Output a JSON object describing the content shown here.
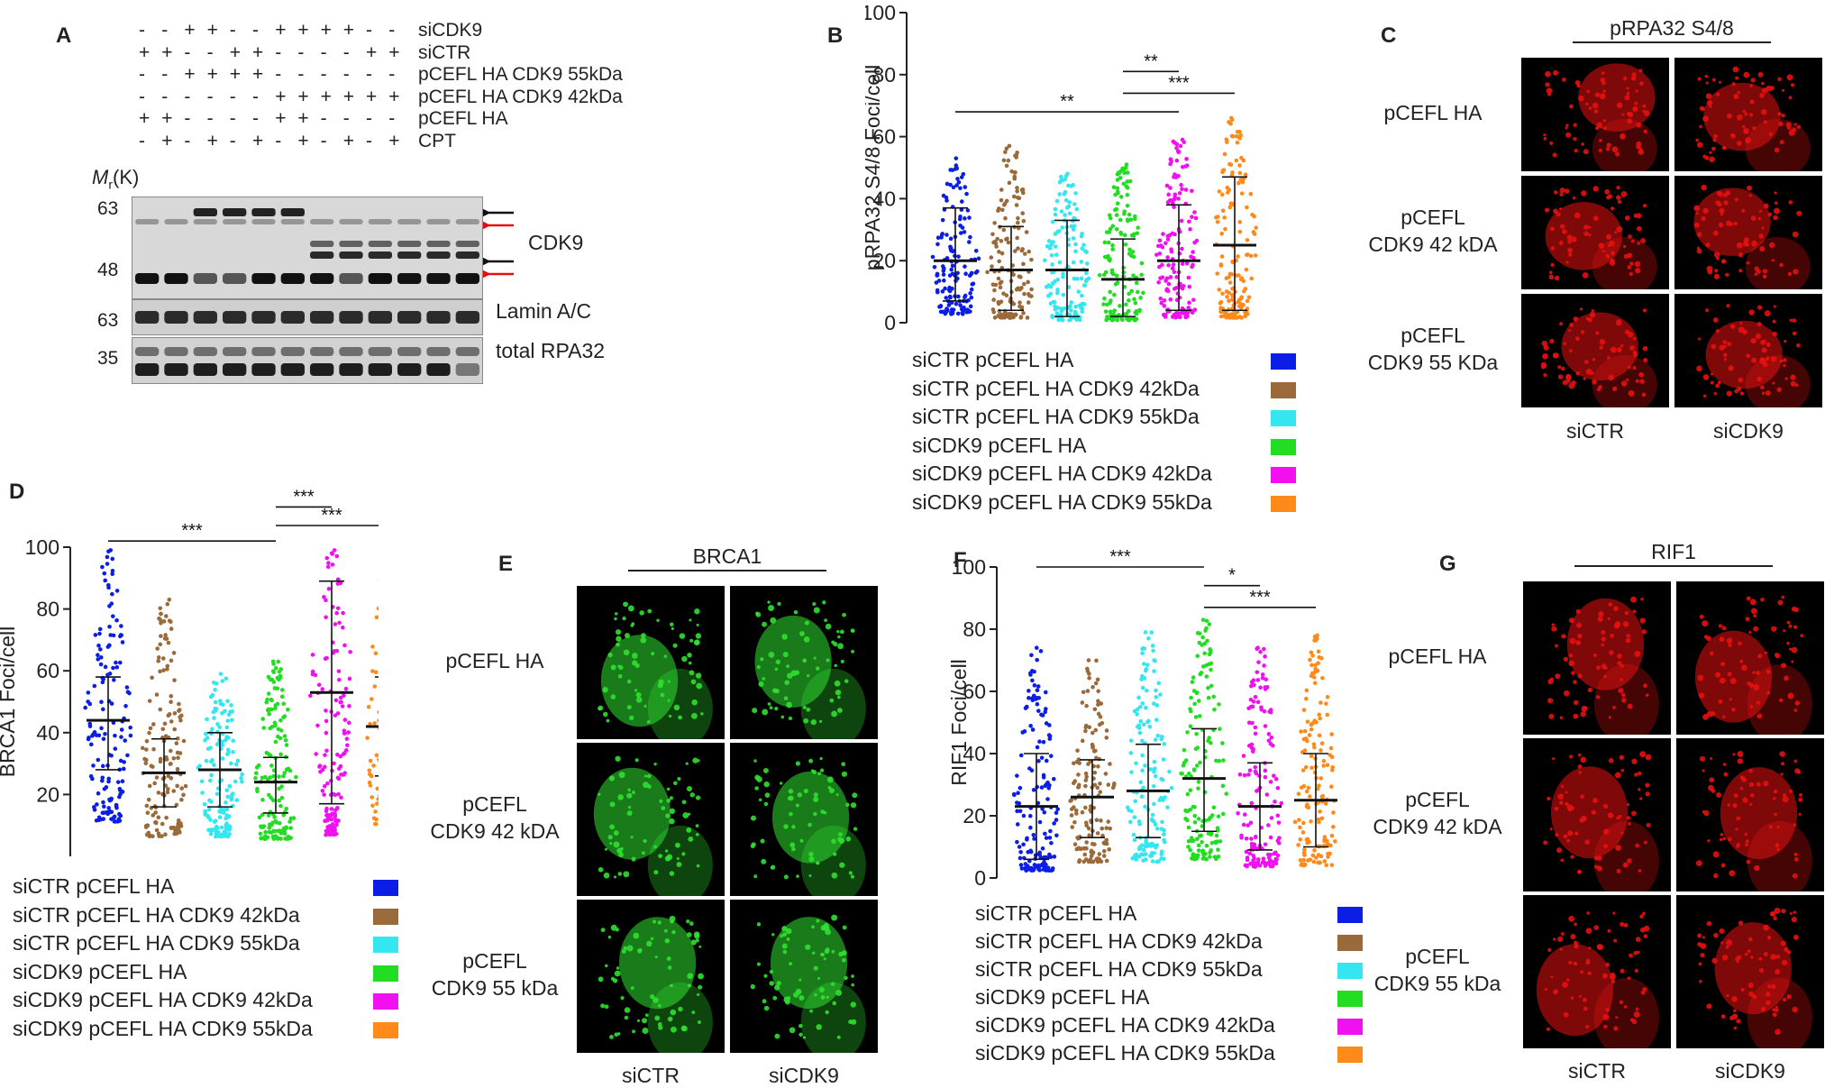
{
  "panels": {
    "A": "A",
    "B": "B",
    "C": "C",
    "D": "D",
    "E": "E",
    "F": "F",
    "G": "G"
  },
  "blot": {
    "rows": [
      {
        "label": "siCDK9",
        "signs": [
          "-",
          "-",
          "+",
          "+",
          "-",
          "-",
          "+",
          "+",
          "+",
          "+",
          "-",
          "-"
        ]
      },
      {
        "label": "siCTR",
        "signs": [
          "+",
          "+",
          "-",
          "-",
          "+",
          "+",
          "-",
          "-",
          "-",
          "-",
          "+",
          "+"
        ]
      },
      {
        "label": "pCEFL HA CDK9 55kDa",
        "signs": [
          "-",
          "-",
          "+",
          "+",
          "+",
          "+",
          "-",
          "-",
          "-",
          "-",
          "-",
          "-"
        ]
      },
      {
        "label": "pCEFL HA CDK9 42kDa",
        "signs": [
          "-",
          "-",
          "-",
          "-",
          "-",
          "-",
          "+",
          "+",
          "+",
          "+",
          "+",
          "+"
        ]
      },
      {
        "label": "pCEFL HA",
        "signs": [
          "+",
          "+",
          "-",
          "-",
          "-",
          "-",
          "+",
          "+",
          "-",
          "-",
          "-",
          "-"
        ]
      },
      {
        "label": "CPT",
        "signs": [
          "-",
          "+",
          "-",
          "+",
          "-",
          "+",
          "-",
          "+",
          "-",
          "+",
          "-",
          "+"
        ]
      }
    ],
    "mr_label_main": "M",
    "mr_label_sub": "r",
    "mr_label_tail": "(K)",
    "markers": [
      "63",
      "48",
      "63",
      "35"
    ],
    "band_labels": [
      "CDK9",
      "Lamin A/C",
      "total RPA32"
    ]
  },
  "legend_items": [
    {
      "label": "siCTR pCEFL HA",
      "color": "#0a1ee6"
    },
    {
      "label": "siCTR pCEFL HA CDK9 42kDa",
      "color": "#9a6a3a"
    },
    {
      "label": "siCTR pCEFL HA CDK9 55kDa",
      "color": "#33e6f0"
    },
    {
      "label": "siCDK9 pCEFL HA",
      "color": "#22dd22"
    },
    {
      "label": "siCDK9 pCEFL HA CDK9 42kDa",
      "color": "#f010f0"
    },
    {
      "label": "siCDK9 pCEFL HA CDK9 55kDa",
      "color": "#ff8a1a"
    }
  ],
  "chart_data": [
    {
      "panel": "B",
      "type": "scatter",
      "ylabel": "pRPA32 S4/8 Foci/cell",
      "ylim": [
        0,
        100
      ],
      "yticks": [
        "0",
        "20",
        "40",
        "60",
        "80",
        "100"
      ],
      "series": [
        {
          "name": "siCTR pCEFL HA",
          "mean": 20,
          "sd_low": 7,
          "sd_high": 37,
          "max": 53
        },
        {
          "name": "siCTR pCEFL HA CDK9 42kDa",
          "mean": 17,
          "sd_low": 4,
          "sd_high": 31,
          "max": 57
        },
        {
          "name": "siCTR pCEFL HA CDK9 55kDa",
          "mean": 17,
          "sd_low": 2,
          "sd_high": 33,
          "max": 48
        },
        {
          "name": "siCDK9 pCEFL HA",
          "mean": 14,
          "sd_low": 2,
          "sd_high": 27,
          "max": 51
        },
        {
          "name": "siCDK9 pCEFL HA CDK9 42kDa",
          "mean": 20,
          "sd_low": 4,
          "sd_high": 38,
          "max": 59
        },
        {
          "name": "siCDK9 pCEFL HA CDK9 55kDa",
          "mean": 25,
          "sd_low": 4,
          "sd_high": 47,
          "max": 66
        }
      ],
      "significance": [
        {
          "from": 0,
          "to": 4,
          "label": "**",
          "y": 68
        },
        {
          "from": 3,
          "to": 4,
          "label": "**",
          "y": 81
        },
        {
          "from": 3,
          "to": 5,
          "label": "***",
          "y": 74
        }
      ]
    },
    {
      "panel": "D",
      "type": "scatter",
      "ylabel": "BRCA1 Foci/cell",
      "ylim": [
        0,
        100
      ],
      "yticks": [
        "20",
        "40",
        "60",
        "80",
        "100"
      ],
      "series": [
        {
          "name": "siCTR pCEFL HA",
          "mean": 44,
          "sd_low": 28,
          "sd_high": 58,
          "max": 99
        },
        {
          "name": "siCTR pCEFL HA CDK9 42kDa",
          "mean": 27,
          "sd_low": 16,
          "sd_high": 38,
          "max": 83
        },
        {
          "name": "siCTR pCEFL HA CDK9 55kDa",
          "mean": 28,
          "sd_low": 16,
          "sd_high": 40,
          "max": 59
        },
        {
          "name": "siCDK9 pCEFL HA",
          "mean": 24,
          "sd_low": 14,
          "sd_high": 32,
          "max": 63
        },
        {
          "name": "siCDK9 pCEFL HA CDK9 42kDa",
          "mean": 53,
          "sd_low": 17,
          "sd_high": 89,
          "max": 99
        },
        {
          "name": "siCDK9 pCEFL HA CDK9 55kDa",
          "mean": 42,
          "sd_low": 26,
          "sd_high": 58,
          "max": 99
        }
      ],
      "significance": [
        {
          "from": 0,
          "to": 3,
          "label": "***",
          "y": 102
        },
        {
          "from": 3,
          "to": 4,
          "label": "***",
          "y": 113
        },
        {
          "from": 3,
          "to": 5,
          "label": "***",
          "y": 107
        }
      ]
    },
    {
      "panel": "F",
      "type": "scatter",
      "ylabel": "RIF1 Foci/cell",
      "ylim": [
        0,
        100
      ],
      "yticks": [
        "0",
        "20",
        "40",
        "60",
        "80",
        "100"
      ],
      "series": [
        {
          "name": "siCTR pCEFL HA",
          "mean": 23,
          "sd_low": 6,
          "sd_high": 40,
          "max": 74
        },
        {
          "name": "siCTR pCEFL HA CDK9 42kDa",
          "mean": 26,
          "sd_low": 13,
          "sd_high": 38,
          "max": 70
        },
        {
          "name": "siCTR pCEFL HA CDK9 55kDa",
          "mean": 28,
          "sd_low": 13,
          "sd_high": 43,
          "max": 79
        },
        {
          "name": "siCDK9 pCEFL HA",
          "mean": 32,
          "sd_low": 15,
          "sd_high": 48,
          "max": 83
        },
        {
          "name": "siCDK9 pCEFL HA CDK9 42kDa",
          "mean": 23,
          "sd_low": 9,
          "sd_high": 37,
          "max": 74
        },
        {
          "name": "siCDK9 pCEFL HA CDK9 55kDa",
          "mean": 25,
          "sd_low": 10,
          "sd_high": 40,
          "max": 78
        }
      ],
      "significance": [
        {
          "from": 0,
          "to": 3,
          "label": "***",
          "y": 100
        },
        {
          "from": 3,
          "to": 4,
          "label": "*",
          "y": 94
        },
        {
          "from": 3,
          "to": 5,
          "label": "***",
          "y": 87
        }
      ]
    }
  ],
  "micrographs": {
    "C": {
      "title": "pRPA32 S4/8",
      "rows": [
        "pCEFL HA",
        "pCEFL\nCDK9 42 kDA",
        "pCEFL\nCDK9 55 KDa"
      ],
      "cols": [
        "siCTR",
        "siCDK9"
      ],
      "color": "#e81010"
    },
    "E": {
      "title": "BRCA1",
      "rows": [
        "pCEFL HA",
        "pCEFL\nCDK9 42 kDA",
        "pCEFL\nCDK9 55 kDa"
      ],
      "cols": [
        "siCTR",
        "siCDK9"
      ],
      "color": "#30e030"
    },
    "G": {
      "title": "RIF1",
      "rows": [
        "pCEFL HA",
        "pCEFL\nCDK9 42 kDA",
        "pCEFL\nCDK9 55 kDa"
      ],
      "cols": [
        "siCTR",
        "siCDK9"
      ],
      "color": "#e81010"
    }
  }
}
